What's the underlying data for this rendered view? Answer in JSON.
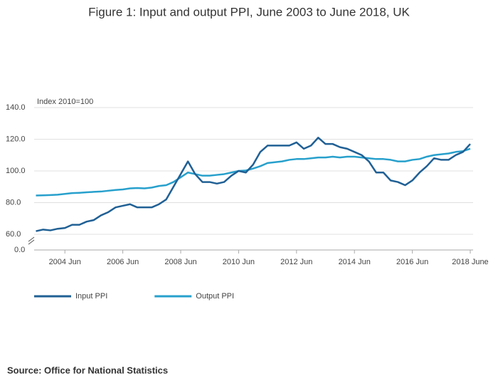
{
  "chart_data": {
    "type": "line",
    "title": "Figure 1: Input and output PPI, June 2003 to June 2018, UK",
    "y_axis_label": "Index 2010=100",
    "source": "Source: Office for National Statistics",
    "x": [
      "2003 Jun",
      "2003 Sep",
      "2003 Dec",
      "2004 Mar",
      "2004 Jun",
      "2004 Sep",
      "2004 Dec",
      "2005 Mar",
      "2005 Jun",
      "2005 Sep",
      "2005 Dec",
      "2006 Mar",
      "2006 Jun",
      "2006 Sep",
      "2006 Dec",
      "2007 Mar",
      "2007 Jun",
      "2007 Sep",
      "2007 Dec",
      "2008 Mar",
      "2008 Jun",
      "2008 Sep",
      "2008 Dec",
      "2009 Mar",
      "2009 Jun",
      "2009 Sep",
      "2009 Dec",
      "2010 Mar",
      "2010 Jun",
      "2010 Sep",
      "2010 Dec",
      "2011 Mar",
      "2011 Jun",
      "2011 Sep",
      "2011 Dec",
      "2012 Mar",
      "2012 Jun",
      "2012 Sep",
      "2012 Dec",
      "2013 Mar",
      "2013 Jun",
      "2013 Sep",
      "2013 Dec",
      "2014 Mar",
      "2014 Jun",
      "2014 Sep",
      "2014 Dec",
      "2015 Mar",
      "2015 Jun",
      "2015 Sep",
      "2015 Dec",
      "2016 Mar",
      "2016 Jun",
      "2016 Sep",
      "2016 Dec",
      "2017 Mar",
      "2017 Jun",
      "2017 Sep",
      "2017 Dec",
      "2018 Mar",
      "2018 Jun"
    ],
    "series": [
      {
        "name": "Input PPI",
        "color": "#206095",
        "values": [
          62,
          63,
          62.5,
          63.5,
          64,
          66,
          66,
          68,
          69,
          72,
          74,
          77,
          78,
          79,
          77,
          77,
          77,
          79,
          82,
          90,
          98,
          106,
          98,
          93,
          93,
          92,
          93,
          97,
          100,
          99,
          104,
          112,
          116,
          116,
          116,
          116,
          118,
          114,
          116,
          121,
          117,
          117,
          115,
          114,
          112,
          110,
          106,
          99,
          99,
          94,
          93,
          91,
          94,
          99,
          103,
          108,
          107,
          107,
          110,
          112,
          117
        ]
      },
      {
        "name": "Output PPI",
        "color": "#27a0cc",
        "values": [
          84.5,
          84.6,
          84.8,
          85,
          85.5,
          86,
          86.2,
          86.5,
          86.8,
          87,
          87.5,
          88,
          88.3,
          89,
          89.2,
          89,
          89.5,
          90.5,
          91,
          93,
          96,
          99,
          98,
          97,
          97,
          97.5,
          98,
          99,
          100,
          100.3,
          101.5,
          103,
          105,
          105.5,
          106,
          107,
          107.5,
          107.5,
          108,
          108.5,
          108.5,
          109,
          108.5,
          109,
          109,
          108.5,
          108,
          107.5,
          107.5,
          107,
          106,
          106,
          107,
          107.5,
          109,
          110,
          110.5,
          111,
          112,
          112.5,
          114
        ]
      }
    ],
    "ylim": [
      60,
      140
    ],
    "yticks": [
      {
        "value": 60,
        "label": "60.0"
      },
      {
        "value": 80,
        "label": "80.0"
      },
      {
        "value": 100,
        "label": "100.0"
      },
      {
        "value": 120,
        "label": "120.0"
      },
      {
        "value": 140,
        "label": "140.0"
      }
    ],
    "axis_break_tick": {
      "value": 0,
      "label": "0.0"
    },
    "xticks": [
      {
        "value": "2004 Jun",
        "label": "2004 Jun"
      },
      {
        "value": "2006 Jun",
        "label": "2006 Jun"
      },
      {
        "value": "2008 Jun",
        "label": "2008 Jun"
      },
      {
        "value": "2010 Jun",
        "label": "2010 Jun"
      },
      {
        "value": "2012 Jun",
        "label": "2012 Jun"
      },
      {
        "value": "2014 Jun",
        "label": "2014 Jun"
      },
      {
        "value": "2016 Jun",
        "label": "2016 Jun"
      },
      {
        "value": "2018 Jun",
        "label": "2018 June"
      }
    ],
    "grid": true
  }
}
